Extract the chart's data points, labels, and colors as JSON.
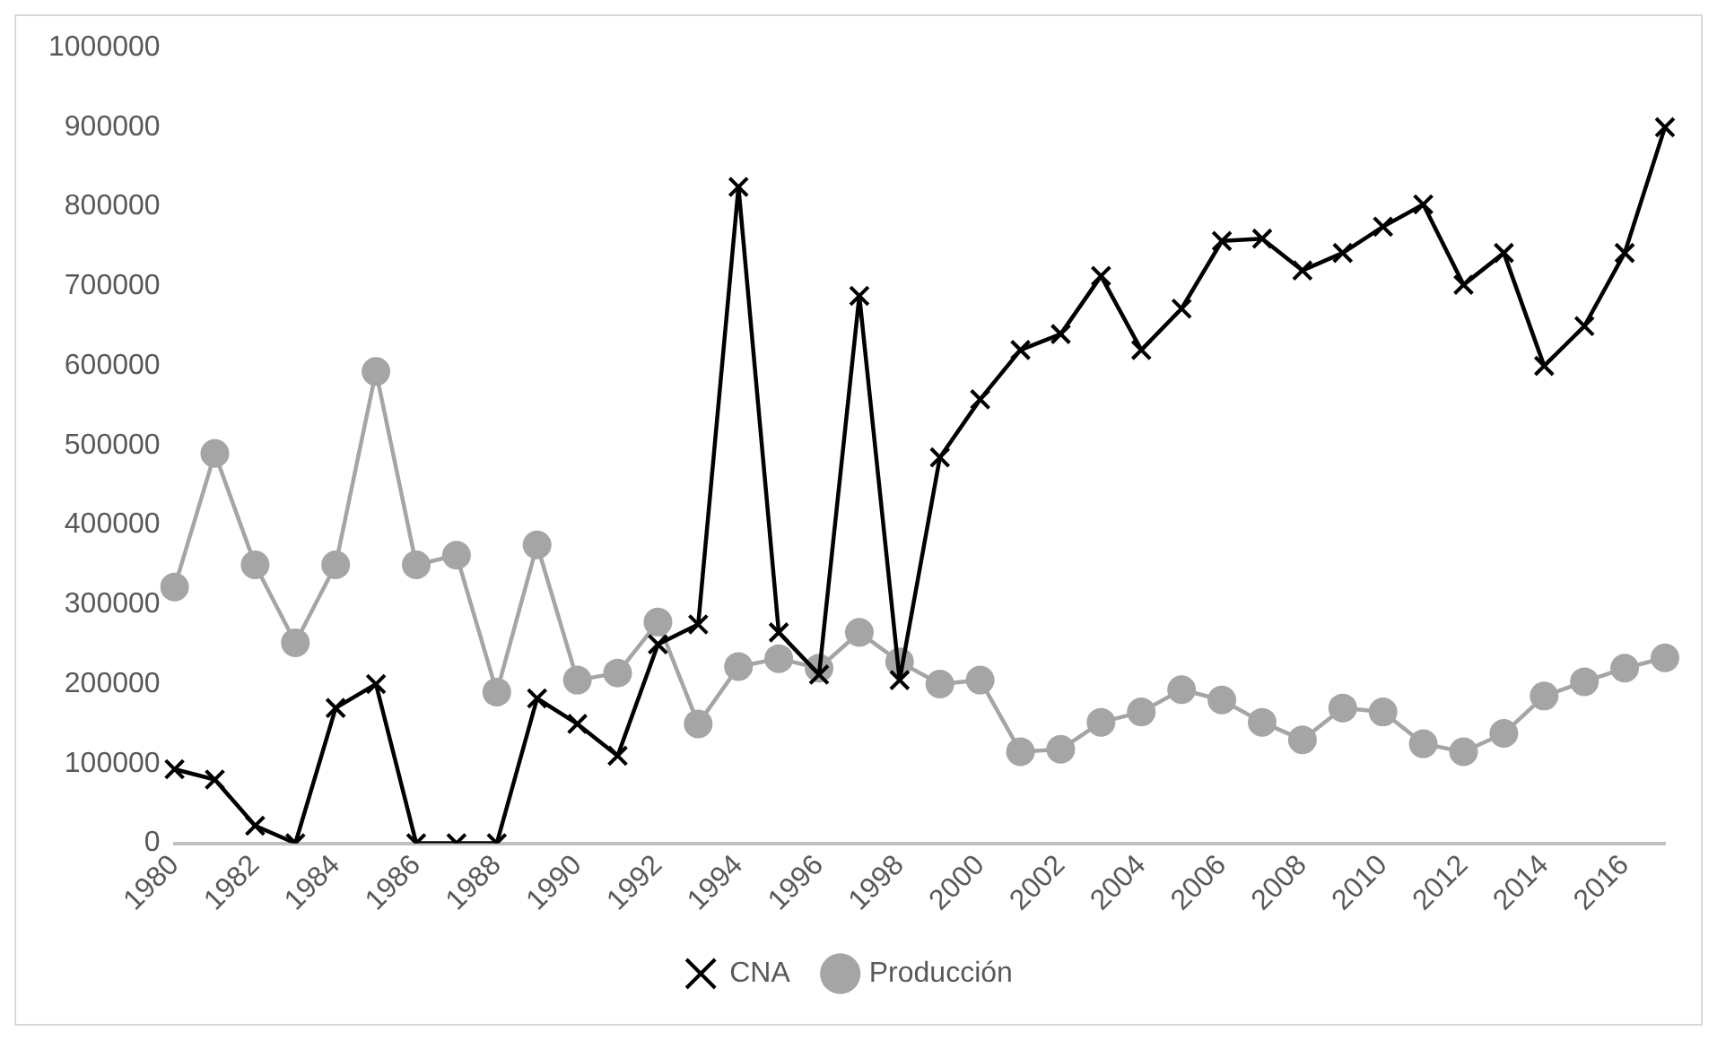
{
  "chart_data": {
    "type": "line",
    "categories": [
      "1980",
      null,
      "1982",
      null,
      "1984",
      null,
      "1986",
      null,
      "1988",
      null,
      "1990",
      null,
      "1992",
      null,
      "1994",
      null,
      "1996",
      null,
      "1998",
      null,
      "2000",
      null,
      "2002",
      null,
      "2004",
      null,
      "2006",
      null,
      "2008",
      null,
      "2010",
      null,
      "2012",
      null,
      "2014",
      null,
      "2016",
      null
    ],
    "series": [
      {
        "name": "CNA",
        "color": "#000000",
        "marker": "cross",
        "values": [
          93000,
          80000,
          22000,
          0,
          170000,
          200000,
          0,
          0,
          0,
          182000,
          150000,
          110000,
          250000,
          275000,
          825000,
          265000,
          212000,
          688000,
          205000,
          485000,
          558000,
          620000,
          640000,
          713000,
          620000,
          672000,
          757000,
          760000,
          720000,
          742000,
          775000,
          803000,
          702000,
          742000,
          600000,
          650000,
          742000,
          900000
        ]
      },
      {
        "name": "Producción",
        "color": "#a5a5a5",
        "marker": "circle",
        "values": [
          322000,
          490000,
          350000,
          252000,
          350000,
          593000,
          350000,
          362000,
          190000,
          375000,
          205000,
          214000,
          278000,
          150000,
          222000,
          232000,
          220000,
          265000,
          228000,
          200000,
          205000,
          115000,
          118000,
          152000,
          165000,
          193000,
          180000,
          152000,
          130000,
          170000,
          165000,
          125000,
          115000,
          138000,
          185000,
          203000,
          220000,
          233000
        ]
      }
    ],
    "ylim": [
      0,
      1000000
    ],
    "yticks": [
      0,
      100000,
      200000,
      300000,
      400000,
      500000,
      600000,
      700000,
      800000,
      900000,
      1000000
    ],
    "grid": false,
    "legend": "bottom"
  }
}
